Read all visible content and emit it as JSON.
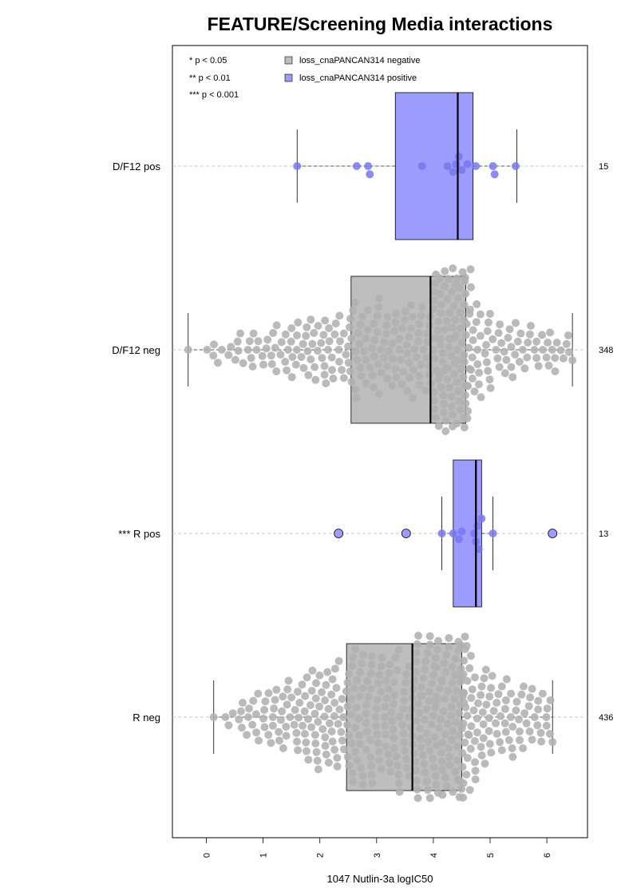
{
  "chart_data": {
    "type": "box-beeswarm",
    "title": "FEATURE/Screening Media interactions",
    "xlabel": "1047 Nutlin-3a logIC50",
    "xlim": [
      -0.6,
      6.7
    ],
    "xticks": [
      "0",
      "1",
      "2",
      "3",
      "4",
      "5",
      "6"
    ],
    "significance_legend": [
      "* p < 0.05",
      "** p < 0.01",
      "*** p < 0.001"
    ],
    "legend": [
      {
        "label": "loss_cnaPANCAN314 negative",
        "color": "#bebebe"
      },
      {
        "label": "loss_cnaPANCAN314 positive",
        "color": "#9c9cff"
      }
    ],
    "colors": {
      "negative_box": "#bebebe",
      "negative_points": "#b0b0b0",
      "positive_box": "#9c9cff",
      "positive_points": "#7777f2",
      "frame": "#000000",
      "gridline": "#c8c8c8"
    },
    "groups": [
      {
        "label": "D/F12 pos",
        "count": "15",
        "kind": "positive",
        "stats": {
          "min": 1.6,
          "q1": 3.33,
          "median": 4.43,
          "q3": 4.7,
          "max": 5.47
        },
        "points": [
          1.6,
          2.65,
          2.85,
          2.88,
          3.8,
          4.35,
          4.4,
          4.45,
          4.5,
          4.6,
          4.75,
          5.05,
          5.08,
          5.45,
          4.25
        ]
      },
      {
        "label": "D/F12 neg",
        "count": "348",
        "kind": "negative",
        "stats": {
          "min": -0.32,
          "q1": 2.55,
          "median": 3.95,
          "q3": 4.57,
          "max": 6.45
        }
      },
      {
        "label": "*** R pos",
        "count": "13",
        "kind": "positive",
        "stats": {
          "min": 4.15,
          "q1": 4.35,
          "median": 4.75,
          "q3": 4.85,
          "max": 5.05
        },
        "outliers": [
          2.33,
          3.52,
          6.1
        ],
        "points": [
          4.15,
          4.35,
          4.45,
          4.5,
          4.72,
          4.75,
          4.78,
          4.8,
          4.85,
          5.05
        ]
      },
      {
        "label": "R neg",
        "count": "436",
        "kind": "negative",
        "stats": {
          "min": 0.13,
          "q1": 2.47,
          "median": 3.63,
          "q3": 4.5,
          "max": 6.1
        }
      }
    ]
  }
}
